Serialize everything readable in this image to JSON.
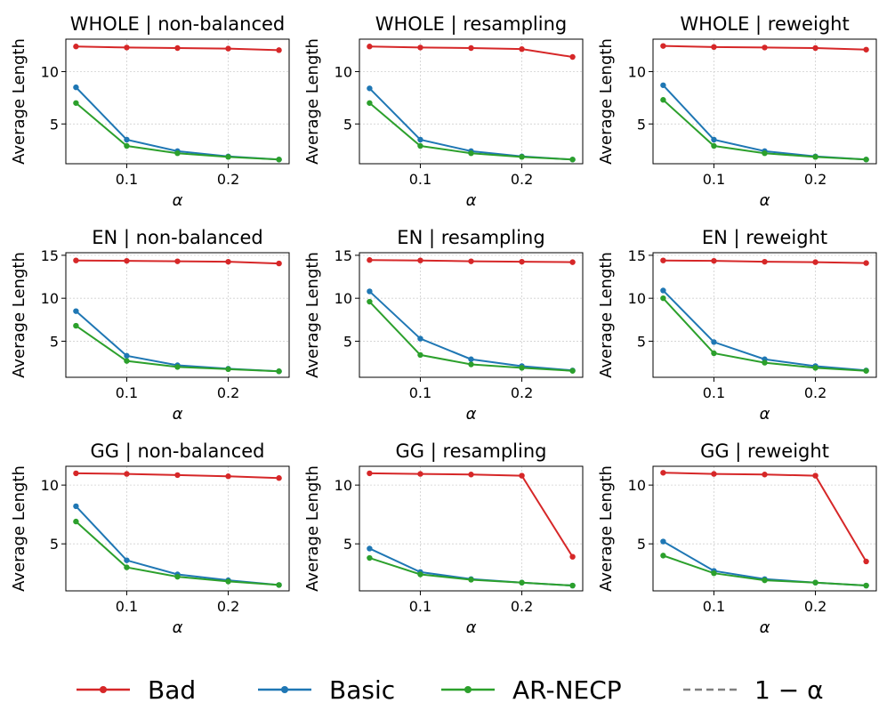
{
  "legend": [
    {
      "label": "Bad",
      "color": "#d62728",
      "style": "solid",
      "marker": true
    },
    {
      "label": "Basic",
      "color": "#1f77b4",
      "style": "solid",
      "marker": true
    },
    {
      "label": "AR-NECP",
      "color": "#2ca02c",
      "style": "solid",
      "marker": true
    },
    {
      "label": "1 − α",
      "color": "#7f7f7f",
      "style": "dashed",
      "marker": false
    }
  ],
  "chart_data": [
    {
      "type": "line",
      "title": "WHOLE | non-balanced",
      "xlabel": "α",
      "ylabel": "Average Length",
      "x": [
        0.05,
        0.1,
        0.15,
        0.2,
        0.25
      ],
      "xlim": [
        0.04,
        0.26
      ],
      "ylim": [
        1.2,
        13.1
      ],
      "xticks": [
        0.1,
        0.2
      ],
      "xtick_labels": [
        "0.1",
        "0.2"
      ],
      "yticks": [
        5,
        10
      ],
      "ytick_labels": [
        "5",
        "10"
      ],
      "series": [
        {
          "name": "Bad",
          "values": [
            12.4,
            12.3,
            12.25,
            12.2,
            12.05
          ]
        },
        {
          "name": "Basic",
          "values": [
            8.5,
            3.5,
            2.4,
            1.9,
            1.6
          ]
        },
        {
          "name": "AR-NECP",
          "values": [
            7.0,
            2.9,
            2.2,
            1.85,
            1.6
          ]
        }
      ]
    },
    {
      "type": "line",
      "title": "WHOLE | resampling",
      "xlabel": "α",
      "ylabel": "Average Length",
      "x": [
        0.05,
        0.1,
        0.15,
        0.2,
        0.25
      ],
      "xlim": [
        0.04,
        0.26
      ],
      "ylim": [
        1.2,
        13.1
      ],
      "xticks": [
        0.1,
        0.2
      ],
      "xtick_labels": [
        "0.1",
        "0.2"
      ],
      "yticks": [
        5,
        10
      ],
      "ytick_labels": [
        "5",
        "10"
      ],
      "series": [
        {
          "name": "Bad",
          "values": [
            12.4,
            12.3,
            12.25,
            12.15,
            11.4
          ]
        },
        {
          "name": "Basic",
          "values": [
            8.4,
            3.5,
            2.4,
            1.9,
            1.6
          ]
        },
        {
          "name": "AR-NECP",
          "values": [
            7.0,
            2.9,
            2.2,
            1.85,
            1.6
          ]
        }
      ]
    },
    {
      "type": "line",
      "title": "WHOLE | reweight",
      "xlabel": "α",
      "ylabel": "Average Length",
      "x": [
        0.05,
        0.1,
        0.15,
        0.2,
        0.25
      ],
      "xlim": [
        0.04,
        0.26
      ],
      "ylim": [
        1.2,
        13.1
      ],
      "xticks": [
        0.1,
        0.2
      ],
      "xtick_labels": [
        "0.1",
        "0.2"
      ],
      "yticks": [
        5,
        10
      ],
      "ytick_labels": [
        "5",
        "10"
      ],
      "series": [
        {
          "name": "Bad",
          "values": [
            12.45,
            12.35,
            12.3,
            12.25,
            12.1
          ]
        },
        {
          "name": "Basic",
          "values": [
            8.7,
            3.5,
            2.4,
            1.9,
            1.6
          ]
        },
        {
          "name": "AR-NECP",
          "values": [
            7.3,
            2.9,
            2.2,
            1.85,
            1.6
          ]
        }
      ]
    },
    {
      "type": "line",
      "title": "EN | non-balanced",
      "xlabel": "α",
      "ylabel": "Average Length",
      "x": [
        0.05,
        0.1,
        0.15,
        0.2,
        0.25
      ],
      "xlim": [
        0.04,
        0.26
      ],
      "ylim": [
        0.8,
        15.3
      ],
      "xticks": [
        0.1,
        0.2
      ],
      "xtick_labels": [
        "0.1",
        "0.2"
      ],
      "yticks": [
        5,
        10,
        15
      ],
      "ytick_labels": [
        "5",
        "10",
        "15"
      ],
      "series": [
        {
          "name": "Bad",
          "values": [
            14.4,
            14.35,
            14.3,
            14.25,
            14.05
          ]
        },
        {
          "name": "Basic",
          "values": [
            8.5,
            3.3,
            2.2,
            1.8,
            1.5
          ]
        },
        {
          "name": "AR-NECP",
          "values": [
            6.8,
            2.7,
            2.0,
            1.75,
            1.5
          ]
        }
      ]
    },
    {
      "type": "line",
      "title": "EN | resampling",
      "xlabel": "α",
      "ylabel": "Average Length",
      "x": [
        0.05,
        0.1,
        0.15,
        0.2,
        0.25
      ],
      "xlim": [
        0.04,
        0.26
      ],
      "ylim": [
        0.8,
        15.3
      ],
      "xticks": [
        0.1,
        0.2
      ],
      "xtick_labels": [
        "0.1",
        "0.2"
      ],
      "yticks": [
        5,
        10,
        15
      ],
      "ytick_labels": [
        "5",
        "10",
        "15"
      ],
      "series": [
        {
          "name": "Bad",
          "values": [
            14.45,
            14.4,
            14.3,
            14.25,
            14.2
          ]
        },
        {
          "name": "Basic",
          "values": [
            10.8,
            5.3,
            2.9,
            2.1,
            1.6
          ]
        },
        {
          "name": "AR-NECP",
          "values": [
            9.6,
            3.4,
            2.3,
            1.9,
            1.55
          ]
        }
      ]
    },
    {
      "type": "line",
      "title": "EN | reweight",
      "xlabel": "α",
      "ylabel": "Average Length",
      "x": [
        0.05,
        0.1,
        0.15,
        0.2,
        0.25
      ],
      "xlim": [
        0.04,
        0.26
      ],
      "ylim": [
        0.8,
        15.3
      ],
      "xticks": [
        0.1,
        0.2
      ],
      "xtick_labels": [
        "0.1",
        "0.2"
      ],
      "yticks": [
        5,
        10,
        15
      ],
      "ytick_labels": [
        "5",
        "10",
        "15"
      ],
      "series": [
        {
          "name": "Bad",
          "values": [
            14.4,
            14.35,
            14.25,
            14.2,
            14.1
          ]
        },
        {
          "name": "Basic",
          "values": [
            10.9,
            4.9,
            2.9,
            2.1,
            1.6
          ]
        },
        {
          "name": "AR-NECP",
          "values": [
            10.0,
            3.6,
            2.5,
            1.9,
            1.55
          ]
        }
      ]
    },
    {
      "type": "line",
      "title": "GG | non-balanced",
      "xlabel": "α",
      "ylabel": "Average Length",
      "x": [
        0.05,
        0.1,
        0.15,
        0.2,
        0.25
      ],
      "xlim": [
        0.04,
        0.26
      ],
      "ylim": [
        1.0,
        11.6
      ],
      "xticks": [
        0.1,
        0.2
      ],
      "xtick_labels": [
        "0.1",
        "0.2"
      ],
      "yticks": [
        5,
        10
      ],
      "ytick_labels": [
        "5",
        "10"
      ],
      "series": [
        {
          "name": "Bad",
          "values": [
            11.0,
            10.95,
            10.85,
            10.75,
            10.6
          ]
        },
        {
          "name": "Basic",
          "values": [
            8.2,
            3.6,
            2.4,
            1.9,
            1.5
          ]
        },
        {
          "name": "AR-NECP",
          "values": [
            6.9,
            3.0,
            2.2,
            1.8,
            1.5
          ]
        }
      ]
    },
    {
      "type": "line",
      "title": "GG | resampling",
      "xlabel": "α",
      "ylabel": "Average Length",
      "x": [
        0.05,
        0.1,
        0.15,
        0.2,
        0.25
      ],
      "xlim": [
        0.04,
        0.26
      ],
      "ylim": [
        1.0,
        11.6
      ],
      "xticks": [
        0.1,
        0.2
      ],
      "xtick_labels": [
        "0.1",
        "0.2"
      ],
      "yticks": [
        5,
        10
      ],
      "ytick_labels": [
        "5",
        "10"
      ],
      "series": [
        {
          "name": "Bad",
          "values": [
            11.0,
            10.95,
            10.9,
            10.8,
            3.9
          ]
        },
        {
          "name": "Basic",
          "values": [
            4.6,
            2.6,
            2.0,
            1.7,
            1.45
          ]
        },
        {
          "name": "AR-NECP",
          "values": [
            3.8,
            2.4,
            1.95,
            1.7,
            1.45
          ]
        }
      ]
    },
    {
      "type": "line",
      "title": "GG | reweight",
      "xlabel": "α",
      "ylabel": "Average Length",
      "x": [
        0.05,
        0.1,
        0.15,
        0.2,
        0.25
      ],
      "xlim": [
        0.04,
        0.26
      ],
      "ylim": [
        1.0,
        11.6
      ],
      "xticks": [
        0.1,
        0.2
      ],
      "xtick_labels": [
        "0.1",
        "0.2"
      ],
      "yticks": [
        5,
        10
      ],
      "ytick_labels": [
        "5",
        "10"
      ],
      "series": [
        {
          "name": "Bad",
          "values": [
            11.05,
            10.95,
            10.9,
            10.8,
            3.5
          ]
        },
        {
          "name": "Basic",
          "values": [
            5.2,
            2.7,
            2.0,
            1.7,
            1.45
          ]
        },
        {
          "name": "AR-NECP",
          "values": [
            4.0,
            2.5,
            1.9,
            1.7,
            1.45
          ]
        }
      ]
    }
  ]
}
